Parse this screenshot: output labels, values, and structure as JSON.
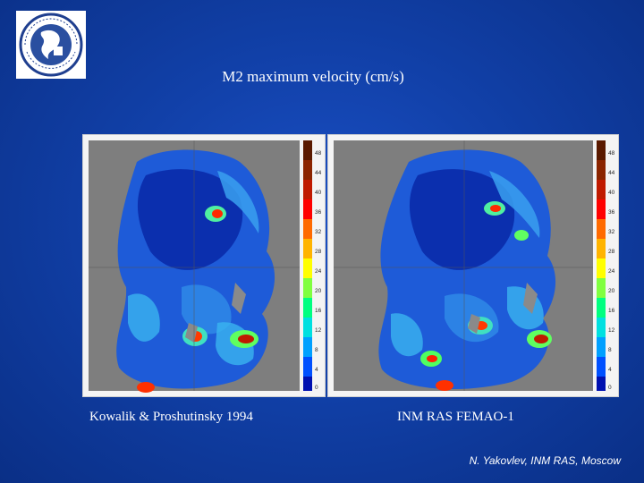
{
  "title": "M2 maximum velocity (cm/s)",
  "maps": [
    {
      "caption": "Kowalik & Proshutinsky 1994"
    },
    {
      "caption": "INM RAS FEMAO-1"
    }
  ],
  "colorbar": {
    "ticks": [
      "48",
      "44",
      "40",
      "36",
      "32",
      "28",
      "24",
      "20",
      "16",
      "12",
      "8",
      "4",
      "0"
    ],
    "colors": [
      "#5a1a00",
      "#8b2500",
      "#c01a00",
      "#ff0000",
      "#ff6a00",
      "#ffb400",
      "#ffff00",
      "#80ff40",
      "#00ff80",
      "#00e0e0",
      "#00a0ff",
      "#0050ff",
      "#0010b0"
    ]
  },
  "credit": "N. Yakovlev, INM RAS, Moscow"
}
